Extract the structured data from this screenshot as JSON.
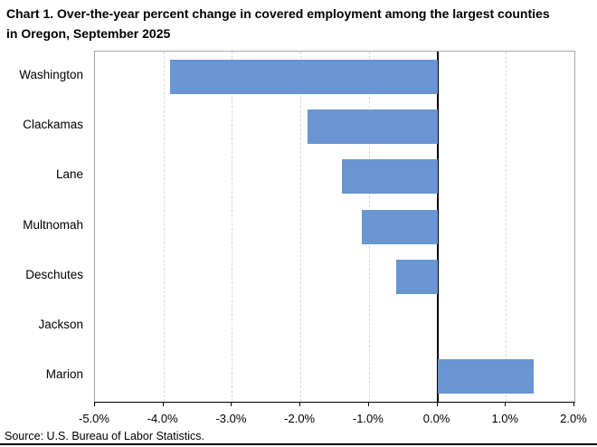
{
  "title": "Chart 1. Over-the-year percent change in covered employment among the largest counties in Oregon, September 2025",
  "source": "Source: U.S. Bureau of Labor Statistics.",
  "colors": {
    "bar": "#6995d3",
    "gridline": "#d9d9d9",
    "plot_border": "#a6a6a6",
    "zero_line": "#000000",
    "axis": "#000000",
    "text": "#000000"
  },
  "chart_data": {
    "type": "bar",
    "orientation": "horizontal",
    "title": "Chart 1. Over-the-year percent change in covered employment among the largest counties in Oregon, September 2025",
    "categories": [
      "Washington",
      "Clackamas",
      "Lane",
      "Multnomah",
      "Deschutes",
      "Jackson",
      "Marion"
    ],
    "values": [
      -3.9,
      -1.9,
      -1.4,
      -1.1,
      -0.6,
      0.0,
      1.4
    ],
    "xlabel": "",
    "ylabel": "",
    "xlim": [
      -5.0,
      2.0
    ],
    "xticks": [
      -5,
      -4,
      -3,
      -2,
      -1,
      0,
      1,
      2
    ],
    "xtick_labels": [
      "-5.0%",
      "-4.0%",
      "-3.0%",
      "-2.0%",
      "-1.0%",
      "0.0%",
      "1.0%",
      "2.0%"
    ],
    "grid": "vertical-dashed",
    "legend": "none",
    "source": "Source: U.S. Bureau of Labor Statistics."
  }
}
